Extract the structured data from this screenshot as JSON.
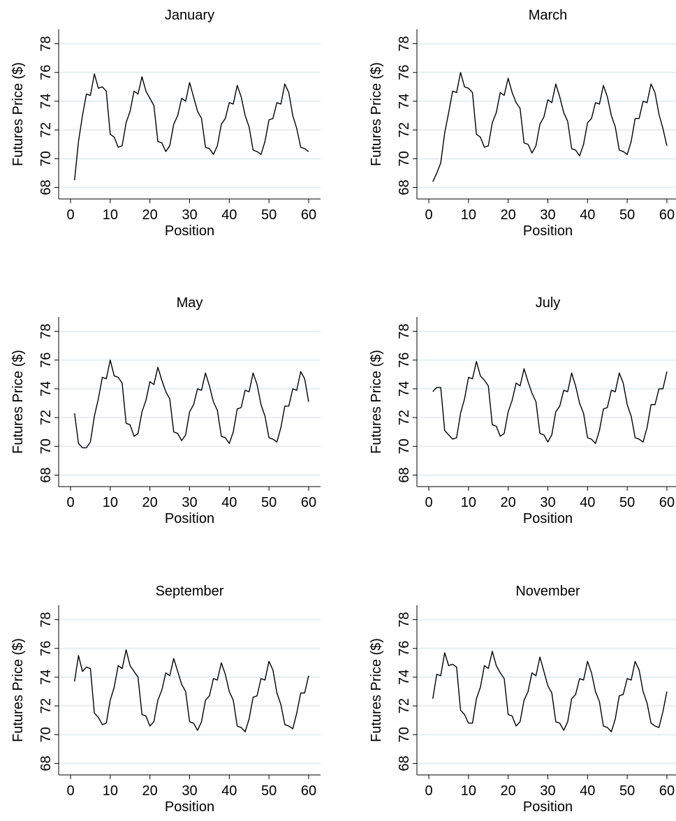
{
  "chart_data": [
    {
      "type": "line",
      "title": "January",
      "xlabel": "Position",
      "ylabel": "Futures Price ($)",
      "xlim": [
        -3,
        63
      ],
      "ylim": [
        67.2,
        79
      ],
      "xticks": [
        0,
        10,
        20,
        30,
        40,
        50,
        60
      ],
      "yticks": [
        68,
        70,
        72,
        74,
        76,
        78
      ],
      "grid": true,
      "series": [
        {
          "x": [
            1,
            2,
            3,
            4,
            5,
            6,
            7,
            8,
            9,
            10,
            11,
            12,
            13,
            14,
            15,
            16,
            17,
            18,
            19,
            20,
            21,
            22,
            23,
            24,
            25,
            26,
            27,
            28,
            29,
            30,
            31,
            32,
            33,
            34,
            35,
            36,
            37,
            38,
            39,
            40,
            41,
            42,
            43,
            44,
            45,
            46,
            47,
            48,
            49,
            50,
            51,
            52,
            53,
            54,
            55,
            56,
            57,
            58,
            59,
            60
          ],
          "y": [
            68.5,
            71.2,
            73.0,
            74.5,
            74.4,
            75.9,
            74.9,
            75.0,
            74.7,
            71.7,
            71.5,
            70.8,
            70.9,
            72.5,
            73.3,
            74.7,
            74.5,
            75.7,
            74.7,
            74.2,
            73.7,
            71.2,
            71.1,
            70.5,
            70.9,
            72.4,
            73.0,
            74.2,
            74.0,
            75.3,
            74.3,
            73.3,
            72.8,
            70.8,
            70.7,
            70.3,
            70.9,
            72.4,
            72.8,
            73.9,
            73.8,
            75.1,
            74.3,
            73.0,
            72.2,
            70.6,
            70.5,
            70.3,
            71.2,
            72.7,
            72.8,
            73.9,
            73.8,
            75.2,
            74.6,
            73.0,
            72.1,
            70.8,
            70.7,
            70.5
          ]
        }
      ]
    },
    {
      "type": "line",
      "title": "March",
      "xlabel": "Position",
      "ylabel": "Futures Price ($)",
      "xlim": [
        -3,
        63
      ],
      "ylim": [
        67.2,
        79
      ],
      "xticks": [
        0,
        10,
        20,
        30,
        40,
        50,
        60
      ],
      "yticks": [
        68,
        70,
        72,
        74,
        76,
        78
      ],
      "grid": true,
      "series": [
        {
          "x": [
            1,
            2,
            3,
            4,
            5,
            6,
            7,
            8,
            9,
            10,
            11,
            12,
            13,
            14,
            15,
            16,
            17,
            18,
            19,
            20,
            21,
            22,
            23,
            24,
            25,
            26,
            27,
            28,
            29,
            30,
            31,
            32,
            33,
            34,
            35,
            36,
            37,
            38,
            39,
            40,
            41,
            42,
            43,
            44,
            45,
            46,
            47,
            48,
            49,
            50,
            51,
            52,
            53,
            54,
            55,
            56,
            57,
            58,
            59,
            60
          ],
          "y": [
            68.4,
            69.0,
            69.7,
            71.8,
            73.2,
            74.7,
            74.6,
            76.0,
            75.0,
            74.9,
            74.6,
            71.7,
            71.5,
            70.8,
            70.9,
            72.5,
            73.2,
            74.6,
            74.4,
            75.6,
            74.6,
            73.9,
            73.5,
            71.1,
            71.0,
            70.4,
            70.9,
            72.4,
            72.9,
            74.1,
            73.9,
            75.2,
            74.3,
            73.2,
            72.6,
            70.7,
            70.6,
            70.2,
            71.0,
            72.5,
            72.8,
            73.9,
            73.8,
            75.1,
            74.3,
            73.0,
            72.2,
            70.6,
            70.5,
            70.3,
            71.2,
            72.8,
            72.8,
            74.0,
            73.9,
            75.2,
            74.6,
            73.1,
            72.1,
            70.9
          ]
        }
      ]
    },
    {
      "type": "line",
      "title": "May",
      "xlabel": "Position",
      "ylabel": "Futures Price ($)",
      "xlim": [
        -3,
        63
      ],
      "ylim": [
        67.2,
        79
      ],
      "xticks": [
        0,
        10,
        20,
        30,
        40,
        50,
        60
      ],
      "yticks": [
        68,
        70,
        72,
        74,
        76,
        78
      ],
      "grid": true,
      "series": [
        {
          "x": [
            1,
            2,
            3,
            4,
            5,
            6,
            7,
            8,
            9,
            10,
            11,
            12,
            13,
            14,
            15,
            16,
            17,
            18,
            19,
            20,
            21,
            22,
            23,
            24,
            25,
            26,
            27,
            28,
            29,
            30,
            31,
            32,
            33,
            34,
            35,
            36,
            37,
            38,
            39,
            40,
            41,
            42,
            43,
            44,
            45,
            46,
            47,
            48,
            49,
            50,
            51,
            52,
            53,
            54,
            55,
            56,
            57,
            58,
            59,
            60
          ],
          "y": [
            72.3,
            70.2,
            69.9,
            69.9,
            70.3,
            72.1,
            73.3,
            74.8,
            74.7,
            76.0,
            74.9,
            74.8,
            74.4,
            71.6,
            71.5,
            70.7,
            70.9,
            72.4,
            73.2,
            74.5,
            74.3,
            75.5,
            74.6,
            73.8,
            73.3,
            71.0,
            70.9,
            70.4,
            70.8,
            72.4,
            72.9,
            74.0,
            73.9,
            75.1,
            74.2,
            73.1,
            72.5,
            70.7,
            70.6,
            70.2,
            71.0,
            72.6,
            72.7,
            73.9,
            73.8,
            75.1,
            74.3,
            72.9,
            72.1,
            70.6,
            70.5,
            70.3,
            71.3,
            72.8,
            72.8,
            74.0,
            73.9,
            75.2,
            74.7,
            73.1
          ]
        }
      ]
    },
    {
      "type": "line",
      "title": "July",
      "xlabel": "Position",
      "ylabel": "Futures Price ($)",
      "xlim": [
        -3,
        63
      ],
      "ylim": [
        67.2,
        79
      ],
      "xticks": [
        0,
        10,
        20,
        30,
        40,
        50,
        60
      ],
      "yticks": [
        68,
        70,
        72,
        74,
        76,
        78
      ],
      "grid": true,
      "series": [
        {
          "x": [
            1,
            2,
            3,
            4,
            5,
            6,
            7,
            8,
            9,
            10,
            11,
            12,
            13,
            14,
            15,
            16,
            17,
            18,
            19,
            20,
            21,
            22,
            23,
            24,
            25,
            26,
            27,
            28,
            29,
            30,
            31,
            32,
            33,
            34,
            35,
            36,
            37,
            38,
            39,
            40,
            41,
            42,
            43,
            44,
            45,
            46,
            47,
            48,
            49,
            50,
            51,
            52,
            53,
            54,
            55,
            56,
            57,
            58,
            59,
            60
          ],
          "y": [
            73.8,
            74.1,
            74.1,
            71.1,
            70.8,
            70.5,
            70.6,
            72.3,
            73.3,
            74.8,
            74.7,
            75.9,
            74.9,
            74.6,
            74.2,
            71.5,
            71.4,
            70.7,
            70.9,
            72.4,
            73.2,
            74.4,
            74.2,
            75.4,
            74.5,
            73.7,
            73.1,
            70.9,
            70.8,
            70.3,
            70.8,
            72.4,
            72.8,
            73.9,
            73.8,
            75.1,
            74.2,
            73.0,
            72.3,
            70.6,
            70.5,
            70.2,
            71.1,
            72.6,
            72.7,
            73.9,
            73.8,
            75.1,
            74.4,
            72.9,
            72.1,
            70.6,
            70.5,
            70.3,
            71.3,
            72.9,
            72.9,
            74.0,
            74.0,
            75.2
          ]
        }
      ]
    },
    {
      "type": "line",
      "title": "September",
      "xlabel": "Position",
      "ylabel": "Futures Price ($)",
      "xlim": [
        -3,
        63
      ],
      "ylim": [
        67.2,
        79
      ],
      "xticks": [
        0,
        10,
        20,
        30,
        40,
        50,
        60
      ],
      "yticks": [
        68,
        70,
        72,
        74,
        76,
        78
      ],
      "grid": true,
      "series": [
        {
          "x": [
            1,
            2,
            3,
            4,
            5,
            6,
            7,
            8,
            9,
            10,
            11,
            12,
            13,
            14,
            15,
            16,
            17,
            18,
            19,
            20,
            21,
            22,
            23,
            24,
            25,
            26,
            27,
            28,
            29,
            30,
            31,
            32,
            33,
            34,
            35,
            36,
            37,
            38,
            39,
            40,
            41,
            42,
            43,
            44,
            45,
            46,
            47,
            48,
            49,
            50,
            51,
            52,
            53,
            54,
            55,
            56,
            57,
            58,
            59,
            60
          ],
          "y": [
            73.7,
            75.5,
            74.4,
            74.7,
            74.6,
            71.5,
            71.2,
            70.7,
            70.8,
            72.4,
            73.3,
            74.8,
            74.6,
            75.9,
            74.8,
            74.4,
            74.0,
            71.4,
            71.3,
            70.6,
            70.9,
            72.4,
            73.1,
            74.3,
            74.1,
            75.3,
            74.4,
            73.5,
            73.0,
            70.9,
            70.8,
            70.3,
            70.9,
            72.4,
            72.7,
            73.9,
            73.8,
            75.0,
            74.2,
            73.0,
            72.4,
            70.6,
            70.5,
            70.2,
            71.1,
            72.6,
            72.7,
            73.9,
            73.8,
            75.1,
            74.5,
            72.9,
            72.1,
            70.7,
            70.6,
            70.4,
            71.5,
            72.9,
            72.9,
            74.1
          ]
        }
      ]
    },
    {
      "type": "line",
      "title": "November",
      "xlabel": "Position",
      "ylabel": "Futures Price ($)",
      "xlim": [
        -3,
        63
      ],
      "ylim": [
        67.2,
        79
      ],
      "xticks": [
        0,
        10,
        20,
        30,
        40,
        50,
        60
      ],
      "yticks": [
        68,
        70,
        72,
        74,
        76,
        78
      ],
      "grid": true,
      "series": [
        {
          "x": [
            1,
            2,
            3,
            4,
            5,
            6,
            7,
            8,
            9,
            10,
            11,
            12,
            13,
            14,
            15,
            16,
            17,
            18,
            19,
            20,
            21,
            22,
            23,
            24,
            25,
            26,
            27,
            28,
            29,
            30,
            31,
            32,
            33,
            34,
            35,
            36,
            37,
            38,
            39,
            40,
            41,
            42,
            43,
            44,
            45,
            46,
            47,
            48,
            49,
            50,
            51,
            52,
            53,
            54,
            55,
            56,
            57,
            58,
            59,
            60
          ],
          "y": [
            72.5,
            74.2,
            74.1,
            75.7,
            74.8,
            74.9,
            74.7,
            71.7,
            71.4,
            70.8,
            70.8,
            72.5,
            73.3,
            74.8,
            74.6,
            75.8,
            74.8,
            74.3,
            73.9,
            71.4,
            71.3,
            70.6,
            70.9,
            72.4,
            73.0,
            74.3,
            74.1,
            75.4,
            74.4,
            73.4,
            72.9,
            70.9,
            70.8,
            70.3,
            70.9,
            72.5,
            72.8,
            73.9,
            73.8,
            75.1,
            74.3,
            73.0,
            72.3,
            70.6,
            70.5,
            70.2,
            71.1,
            72.7,
            72.8,
            73.9,
            73.8,
            75.1,
            74.5,
            73.0,
            72.2,
            70.8,
            70.6,
            70.5,
            71.6,
            73.0
          ]
        }
      ]
    }
  ]
}
